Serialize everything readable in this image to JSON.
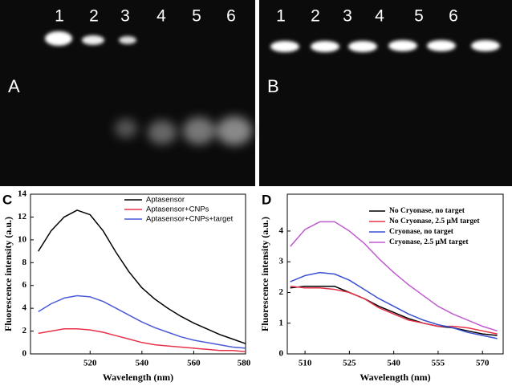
{
  "gels": [
    {
      "label": "A",
      "lanes": [
        "1",
        "2",
        "3",
        "4",
        "5",
        "6"
      ]
    },
    {
      "label": "B",
      "lanes": [
        "1",
        "2",
        "3",
        "4",
        "5",
        "6"
      ]
    }
  ],
  "chart_data": [
    {
      "type": "line",
      "panel": "C",
      "xlabel": "Wavelength (nm)",
      "ylabel": "Fluorescence intensity (a.u.)",
      "x": [
        500,
        505,
        510,
        515,
        520,
        525,
        530,
        535,
        540,
        545,
        550,
        555,
        560,
        565,
        570,
        575,
        580
      ],
      "xlim": [
        497,
        580
      ],
      "xticks": [
        520,
        540,
        560,
        580
      ],
      "ylim": [
        0,
        14
      ],
      "yticks": [
        0,
        2,
        4,
        6,
        8,
        10,
        12,
        14
      ],
      "series": [
        {
          "name": "Aptasensor",
          "color": "#000000",
          "values": [
            9.0,
            10.8,
            12.0,
            12.6,
            12.2,
            10.8,
            8.9,
            7.2,
            5.8,
            4.8,
            4.0,
            3.3,
            2.7,
            2.2,
            1.7,
            1.3,
            0.9
          ]
        },
        {
          "name": "Aptasensor+CNPs",
          "color": "#e8324a",
          "values": [
            1.8,
            2.0,
            2.2,
            2.2,
            2.1,
            1.9,
            1.6,
            1.3,
            1.0,
            0.8,
            0.7,
            0.6,
            0.5,
            0.4,
            0.3,
            0.3,
            0.2
          ]
        },
        {
          "name": "Aptasensor+CNPs+target",
          "color": "#4a5ad6",
          "values": [
            3.7,
            4.4,
            4.9,
            5.1,
            5.0,
            4.6,
            4.0,
            3.4,
            2.8,
            2.3,
            1.9,
            1.5,
            1.2,
            1.0,
            0.8,
            0.6,
            0.5
          ]
        }
      ]
    },
    {
      "type": "line",
      "panel": "D",
      "xlabel": "Wavelength (nm)",
      "ylabel": "Fluorescence intensity (a.u.)",
      "x": [
        505,
        510,
        515,
        520,
        525,
        530,
        535,
        540,
        545,
        550,
        555,
        560,
        565,
        570,
        575
      ],
      "xlim": [
        504,
        577
      ],
      "xticks": [
        510,
        525,
        540,
        555,
        570
      ],
      "ylim": [
        0,
        5.2
      ],
      "yticks": [
        0,
        1,
        2,
        3,
        4
      ],
      "series": [
        {
          "name": "No Cryonase, no target",
          "color": "#000000",
          "values": [
            2.15,
            2.2,
            2.2,
            2.2,
            2.0,
            1.8,
            1.55,
            1.35,
            1.15,
            1.0,
            0.9,
            0.85,
            0.75,
            0.65,
            0.6
          ]
        },
        {
          "name": "No Cryonase, 2.5 μM target",
          "color": "#e8324a",
          "values": [
            2.2,
            2.15,
            2.15,
            2.1,
            2.0,
            1.8,
            1.5,
            1.3,
            1.1,
            1.0,
            0.9,
            0.9,
            0.85,
            0.75,
            0.65
          ]
        },
        {
          "name": "Cryonase, no target",
          "color": "#3a50d0",
          "values": [
            2.35,
            2.55,
            2.65,
            2.6,
            2.4,
            2.1,
            1.8,
            1.55,
            1.3,
            1.1,
            0.95,
            0.85,
            0.7,
            0.6,
            0.5
          ]
        },
        {
          "name": "Cryonase, 2.5 μM target",
          "color": "#c05ad0",
          "values": [
            3.5,
            4.05,
            4.3,
            4.3,
            4.0,
            3.6,
            3.1,
            2.65,
            2.25,
            1.9,
            1.55,
            1.3,
            1.1,
            0.9,
            0.75
          ]
        }
      ]
    }
  ]
}
